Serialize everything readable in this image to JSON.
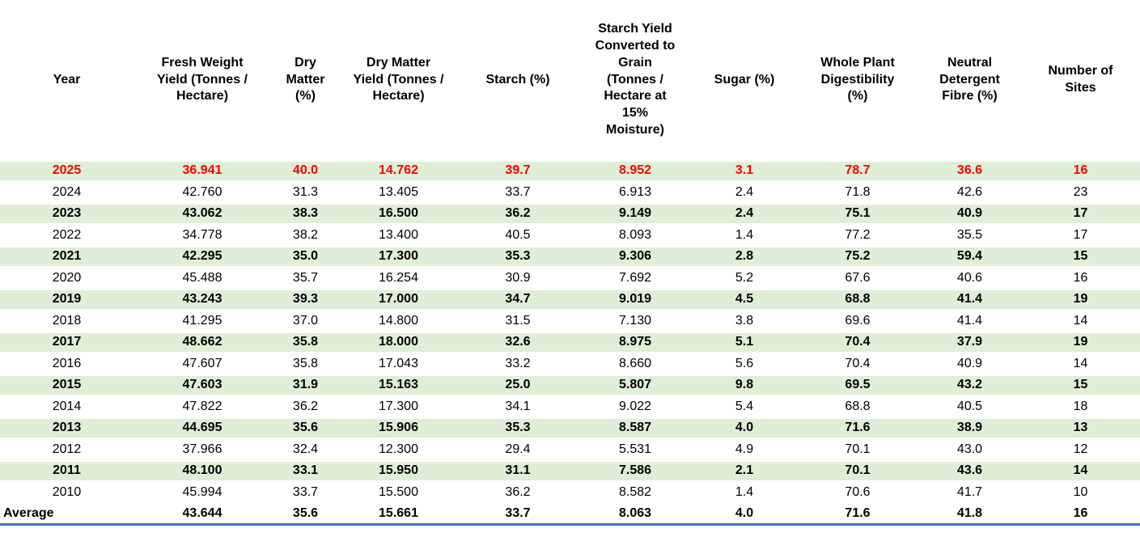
{
  "chart_data": {
    "type": "table",
    "columns": [
      "Year",
      "Fresh Weight\nYield (Tonnes /\nHectare)",
      "Dry\nMatter\n(%)",
      "Dry Matter\nYield (Tonnes /\nHectare)",
      "Starch (%)",
      "Starch Yield\nConverted to\nGrain\n(Tonnes /\nHectare at\n15%\nMoisture)",
      "Sugar (%)",
      "Whole Plant\nDigestibility\n(%)",
      "Neutral\nDetergent\nFibre (%)",
      "Number of\nSites"
    ],
    "column_keys": [
      "year",
      "fresh-weight-yield",
      "dry-matter-pct",
      "dry-matter-yield",
      "starch-pct",
      "starch-yield-grain",
      "sugar-pct",
      "whole-plant-digestibility",
      "neutral-detergent-fibre",
      "number-of-sites"
    ],
    "rows": [
      {
        "style": "current",
        "cells": [
          "2025",
          "36.941",
          "40.0",
          "14.762",
          "39.7",
          "8.952",
          "3.1",
          "78.7",
          "36.6",
          "16"
        ]
      },
      {
        "style": "plain",
        "cells": [
          "2024",
          "42.760",
          "31.3",
          "13.405",
          "33.7",
          "6.913",
          "2.4",
          "71.8",
          "42.6",
          "23"
        ]
      },
      {
        "style": "band",
        "cells": [
          "2023",
          "43.062",
          "38.3",
          "16.500",
          "36.2",
          "9.149",
          "2.4",
          "75.1",
          "40.9",
          "17"
        ]
      },
      {
        "style": "plain",
        "cells": [
          "2022",
          "34.778",
          "38.2",
          "13.400",
          "40.5",
          "8.093",
          "1.4",
          "77.2",
          "35.5",
          "17"
        ]
      },
      {
        "style": "band",
        "cells": [
          "2021",
          "42.295",
          "35.0",
          "17.300",
          "35.3",
          "9.306",
          "2.8",
          "75.2",
          "59.4",
          "15"
        ]
      },
      {
        "style": "plain",
        "cells": [
          "2020",
          "45.488",
          "35.7",
          "16.254",
          "30.9",
          "7.692",
          "5.2",
          "67.6",
          "40.6",
          "16"
        ]
      },
      {
        "style": "band",
        "cells": [
          "2019",
          "43.243",
          "39.3",
          "17.000",
          "34.7",
          "9.019",
          "4.5",
          "68.8",
          "41.4",
          "19"
        ]
      },
      {
        "style": "plain",
        "cells": [
          "2018",
          "41.295",
          "37.0",
          "14.800",
          "31.5",
          "7.130",
          "3.8",
          "69.6",
          "41.4",
          "14"
        ]
      },
      {
        "style": "band",
        "cells": [
          "2017",
          "48.662",
          "35.8",
          "18.000",
          "32.6",
          "8.975",
          "5.1",
          "70.4",
          "37.9",
          "19"
        ]
      },
      {
        "style": "plain",
        "cells": [
          "2016",
          "47.607",
          "35.8",
          "17.043",
          "33.2",
          "8.660",
          "5.6",
          "70.4",
          "40.9",
          "14"
        ]
      },
      {
        "style": "band",
        "cells": [
          "2015",
          "47.603",
          "31.9",
          "15.163",
          "25.0",
          "5.807",
          "9.8",
          "69.5",
          "43.2",
          "15"
        ]
      },
      {
        "style": "plain",
        "cells": [
          "2014",
          "47.822",
          "36.2",
          "17.300",
          "34.1",
          "9.022",
          "5.4",
          "68.8",
          "40.5",
          "18"
        ]
      },
      {
        "style": "band",
        "cells": [
          "2013",
          "44.695",
          "35.6",
          "15.906",
          "35.3",
          "8.587",
          "4.0",
          "71.6",
          "38.9",
          "13"
        ]
      },
      {
        "style": "plain",
        "cells": [
          "2012",
          "37.966",
          "32.4",
          "12.300",
          "29.4",
          "5.531",
          "4.9",
          "70.1",
          "43.0",
          "12"
        ]
      },
      {
        "style": "band",
        "cells": [
          "2011",
          "48.100",
          "33.1",
          "15.950",
          "31.1",
          "7.586",
          "2.1",
          "70.1",
          "43.6",
          "14"
        ]
      },
      {
        "style": "plain",
        "cells": [
          "2010",
          "45.994",
          "33.7",
          "15.500",
          "36.2",
          "8.582",
          "1.4",
          "70.6",
          "41.7",
          "10"
        ]
      },
      {
        "style": "average",
        "cells": [
          "Average",
          "43.644",
          "35.6",
          "15.661",
          "33.7",
          "8.063",
          "4.0",
          "71.6",
          "41.8",
          "16"
        ]
      }
    ],
    "colors": {
      "band_green": "#dfeed6",
      "current_year_red": "#ff0000",
      "average_border_blue": "#4472c4",
      "text": "#000000"
    },
    "layout_hints": {
      "banded_rows": "odd years highlighted green and bold",
      "current_row": "2025 shown in red bold on green band",
      "average_row": "bold with blue bottom rule, label left-aligned"
    }
  }
}
